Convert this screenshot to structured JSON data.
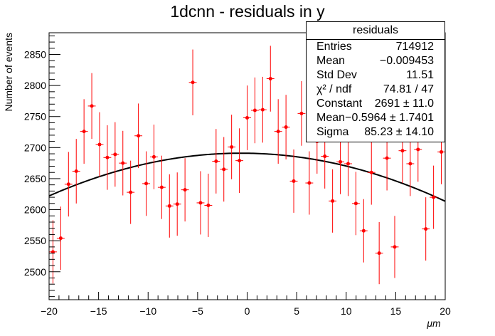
{
  "chart_data": {
    "type": "scatter",
    "title": "1dcnn - residuals in y",
    "xlabel": "μm",
    "ylabel": "Number of events",
    "xlim": [
      -20,
      20
    ],
    "ylim": [
      2455,
      2885
    ],
    "x_ticks": [
      -20,
      -15,
      -10,
      -5,
      0,
      5,
      10,
      15,
      20
    ],
    "x_tick_labels": [
      "−20",
      "−15",
      "−10",
      "−5",
      "0",
      "5",
      "10",
      "15",
      "20"
    ],
    "y_ticks": [
      2500,
      2550,
      2600,
      2650,
      2700,
      2750,
      2800,
      2850
    ],
    "y_tick_labels": [
      "2500",
      "2550",
      "2600",
      "2650",
      "2700",
      "2750",
      "2800",
      "2850"
    ],
    "grid": false,
    "colors": {
      "points": "#ff0000",
      "fit": "#000000",
      "axes": "#000000"
    },
    "series": [
      {
        "name": "residuals",
        "bin_half_width": 0.3922,
        "x": [
          -19.608,
          -18.824,
          -18.039,
          -17.255,
          -16.471,
          -15.686,
          -14.902,
          -14.118,
          -13.333,
          -12.549,
          -11.765,
          -10.98,
          -10.196,
          -9.412,
          -8.627,
          -7.843,
          -7.059,
          -6.275,
          -5.49,
          -4.706,
          -3.922,
          -3.137,
          -2.353,
          -1.569,
          -0.784,
          0.0,
          0.784,
          1.569,
          2.353,
          3.137,
          3.922,
          4.706,
          5.49,
          6.275,
          7.059,
          7.843,
          8.627,
          9.412,
          10.196,
          10.98,
          11.765,
          12.549,
          13.333,
          14.118,
          14.902,
          15.686,
          16.471,
          17.255,
          18.039,
          18.824,
          19.608
        ],
        "y": [
          2532,
          2554,
          2641,
          2662,
          2726,
          2767,
          2705,
          2684,
          2689,
          2675,
          2628,
          2719,
          2642,
          2685,
          2636,
          2606,
          2609,
          2632,
          2805,
          2611,
          2607,
          2678,
          2665,
          2701,
          2679,
          2748,
          2760,
          2761,
          2811,
          2726,
          2733,
          2646,
          2755,
          2643,
          2710,
          2686,
          2614,
          2677,
          2674,
          2610,
          2566,
          2660,
          2530,
          2683,
          2540,
          2695,
          2674,
          2697,
          2569,
          2620,
          2693
        ],
        "y_err": [
          51,
          51,
          52,
          52,
          52,
          53,
          52,
          52,
          52,
          52,
          51,
          52,
          52,
          52,
          51,
          51,
          51,
          51,
          53,
          51,
          51,
          52,
          52,
          52,
          52,
          52,
          53,
          53,
          53,
          52,
          52,
          51,
          52,
          51,
          52,
          52,
          51,
          52,
          52,
          51,
          51,
          52,
          50,
          52,
          50,
          52,
          52,
          52,
          51,
          51,
          52
        ]
      },
      {
        "name": "gaussian fit",
        "function": "gaus",
        "constant": 2691,
        "mean": -0.5964,
        "sigma": 85.23
      }
    ]
  },
  "stats": {
    "title": "residuals",
    "rows": [
      {
        "label": "Entries",
        "value": "714912"
      },
      {
        "label": "Mean",
        "value": "−0.009453"
      },
      {
        "label": "Std Dev",
        "value": "11.51"
      },
      {
        "label": "χ² / ndf",
        "value": "74.81 / 47"
      },
      {
        "label": "Constant",
        "value": "2691 ± 11.0"
      },
      {
        "label": "Mean",
        "value": "−0.5964 ± 1.7401"
      },
      {
        "label": "Sigma",
        "value": "85.23 ± 14.10"
      }
    ]
  }
}
